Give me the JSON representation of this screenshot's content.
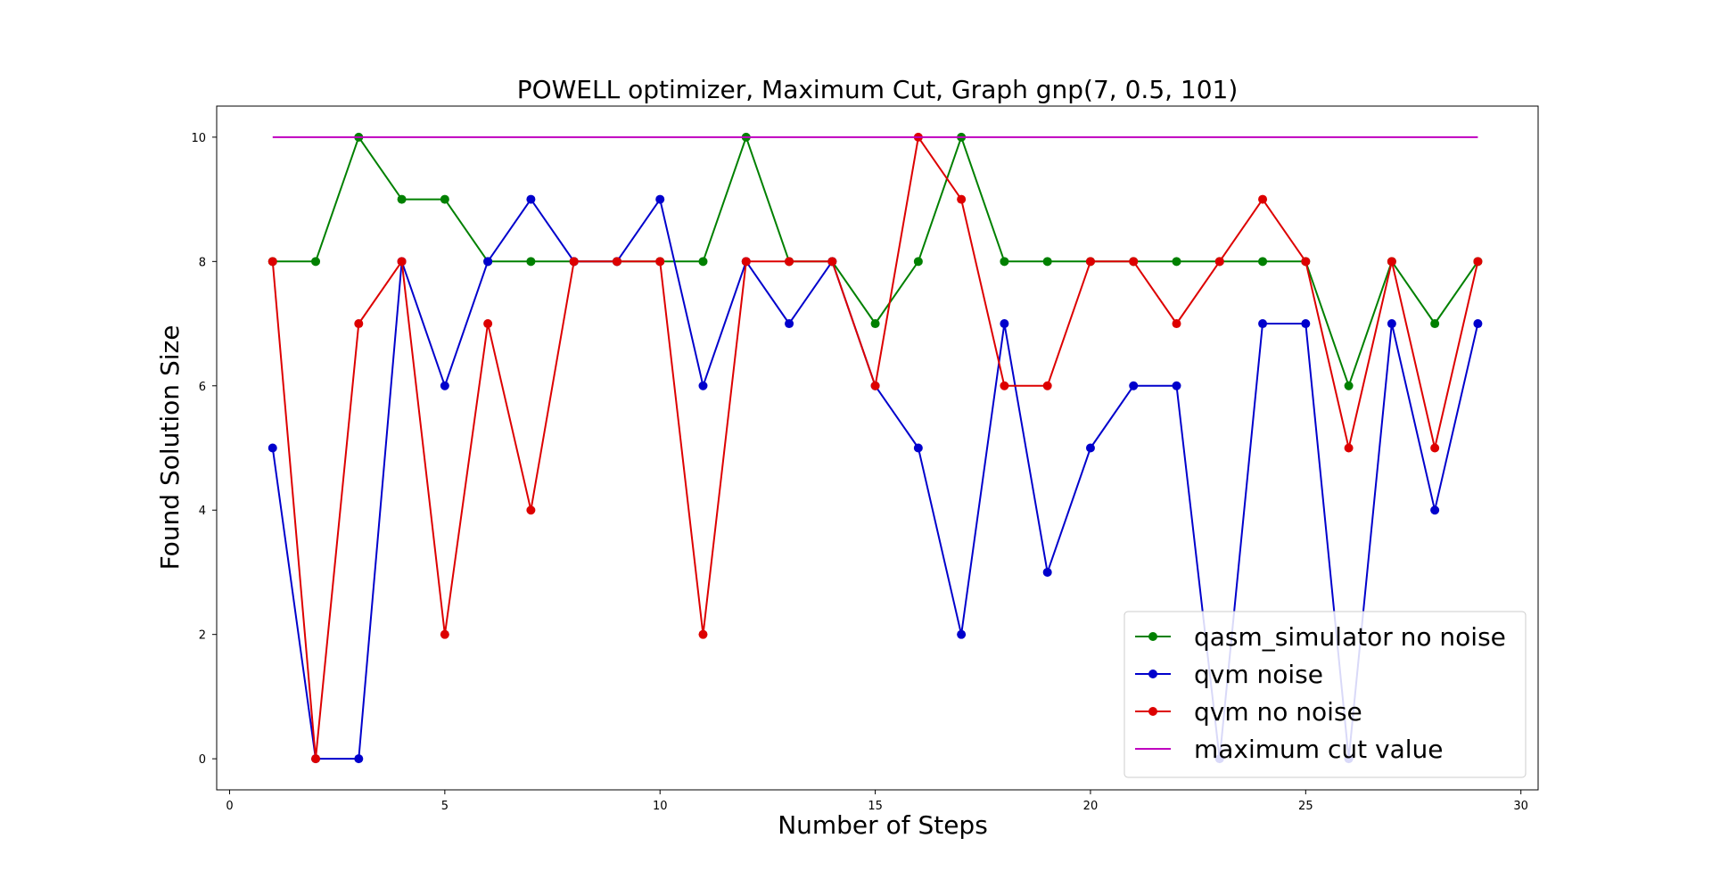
{
  "chart_data": {
    "type": "line",
    "title": "POWELL optimizer, Maximum Cut, Graph gnp(7, 0.5, 101)",
    "xlabel": "Number of Steps",
    "ylabel": "Found Solution Size",
    "xlim": [
      -0.3,
      30.4
    ],
    "ylim": [
      -0.5,
      10.5
    ],
    "xticks": [
      0,
      5,
      10,
      15,
      20,
      25,
      30
    ],
    "yticks": [
      0,
      2,
      4,
      6,
      8,
      10
    ],
    "grid": false,
    "legend_position": "bottom-right",
    "x": [
      1,
      2,
      3,
      4,
      5,
      6,
      7,
      8,
      9,
      10,
      11,
      12,
      13,
      14,
      15,
      16,
      17,
      18,
      19,
      20,
      21,
      22,
      23,
      24,
      25,
      26,
      27,
      28,
      29
    ],
    "series": [
      {
        "name": "qasm_simulator no noise",
        "color": "#008000",
        "markers": true,
        "values": [
          8,
          8,
          10,
          9,
          9,
          8,
          8,
          8,
          8,
          8,
          8,
          10,
          8,
          8,
          7,
          8,
          10,
          8,
          8,
          8,
          8,
          8,
          8,
          8,
          8,
          6,
          8,
          7,
          8
        ]
      },
      {
        "name": "qvm noise",
        "color": "#0000cc",
        "markers": true,
        "values": [
          5,
          0,
          0,
          8,
          6,
          8,
          9,
          8,
          8,
          9,
          6,
          8,
          7,
          8,
          6,
          5,
          2,
          7,
          3,
          5,
          6,
          6,
          0,
          7,
          7,
          0,
          7,
          4,
          7
        ]
      },
      {
        "name": "qvm no noise",
        "color": "#dd0000",
        "markers": true,
        "values": [
          8,
          0,
          7,
          8,
          2,
          7,
          4,
          8,
          8,
          8,
          2,
          8,
          8,
          8,
          6,
          10,
          9,
          6,
          6,
          8,
          8,
          7,
          8,
          9,
          8,
          5,
          8,
          5,
          8
        ]
      },
      {
        "name": "maximum cut value",
        "color": "#bf00bf",
        "markers": false,
        "values": [
          10,
          10,
          10,
          10,
          10,
          10,
          10,
          10,
          10,
          10,
          10,
          10,
          10,
          10,
          10,
          10,
          10,
          10,
          10,
          10,
          10,
          10,
          10,
          10,
          10,
          10,
          10,
          10,
          10
        ]
      }
    ]
  }
}
